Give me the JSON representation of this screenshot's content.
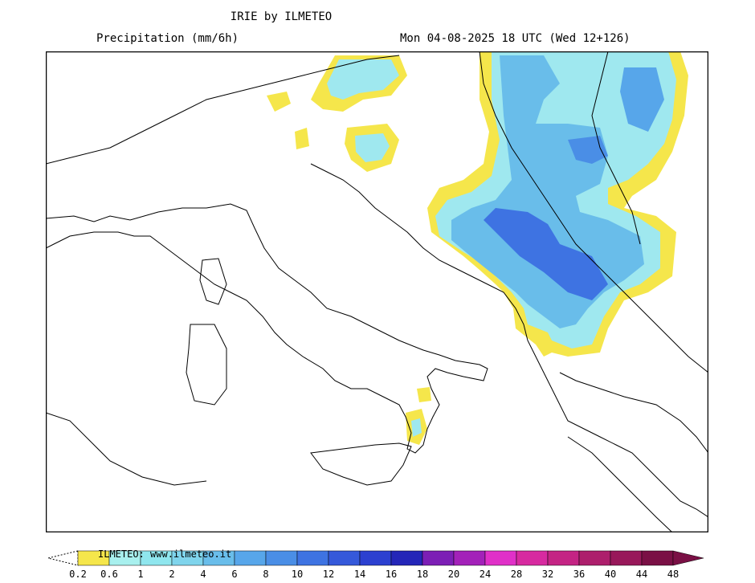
{
  "header": {
    "title": "IRIE by ILMETEO",
    "variable": "Precipitation (mm/6h)",
    "valid_time": "Mon 04-08-2025 18 UTC (Wed 12+126)"
  },
  "legend": {
    "credit": "ILMETEO: www.ilmeteo.it",
    "unit": "mm/6h",
    "ticks": [
      "0.2",
      "0.6",
      "1",
      "2",
      "4",
      "6",
      "8",
      "10",
      "12",
      "14",
      "16",
      "18",
      "20",
      "24",
      "28",
      "32",
      "36",
      "40",
      "44",
      "48"
    ],
    "colors": [
      "#f5e64b",
      "#a8f0ee",
      "#8fe6ee",
      "#7fd4ec",
      "#69bdea",
      "#57a6ea",
      "#4a8ee6",
      "#3e73e2",
      "#3559da",
      "#2c40d0",
      "#2426b8",
      "#7c1fb5",
      "#a321b9",
      "#e030c8",
      "#d72aa0",
      "#c42484",
      "#ad1f6c",
      "#98185a",
      "#7a1045"
    ]
  },
  "map": {
    "region": "Italy, Adriatic and Balkans",
    "precip_areas": [
      {
        "area": "Balkans: Bosnia, Serbia, Montenegro, Albania, North Macedonia, Kosovo",
        "max_class": "8-10"
      },
      {
        "area": "Romania / Carpathians",
        "max_class": "6-8"
      },
      {
        "area": "Eastern Alps / Slovenia",
        "max_class": "1-2"
      },
      {
        "area": "Calabria",
        "max_class": "1-2"
      }
    ]
  }
}
